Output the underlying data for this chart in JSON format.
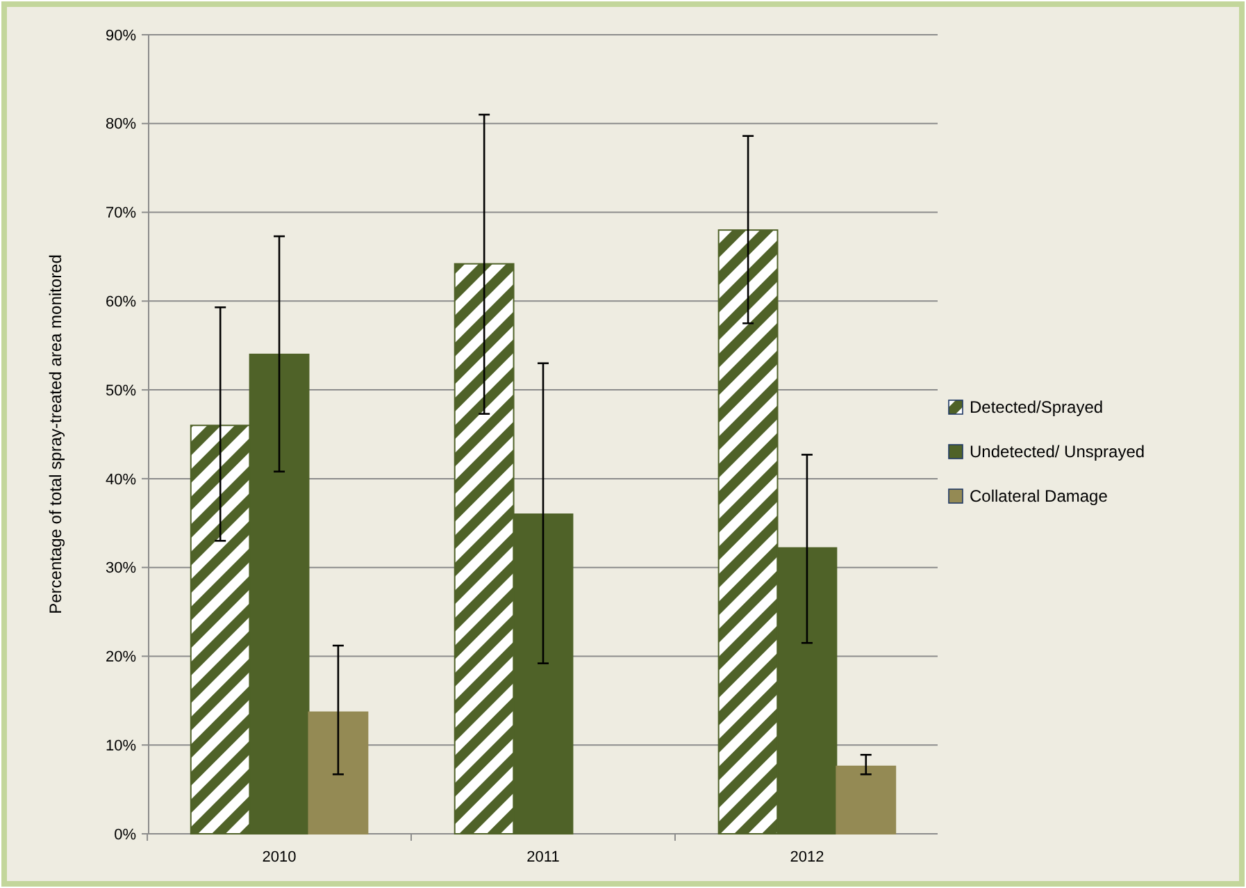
{
  "chart_data": {
    "type": "bar",
    "ylabel": "Percentage of total spray-treated area monitored",
    "categories": [
      "2010",
      "2011",
      "2012"
    ],
    "series": [
      {
        "name": "Detected/Sprayed",
        "color": "#4f6228",
        "values": [
          46,
          64.2,
          68
        ],
        "errors": [
          [
            33,
            59.3
          ],
          [
            47.3,
            81
          ],
          [
            57.5,
            78.6
          ]
        ]
      },
      {
        "name": "Undetected/ Unsprayed",
        "color": "#4f6228",
        "values": [
          54,
          36,
          32.2
        ],
        "errors": [
          [
            40.8,
            67.3
          ],
          [
            19.2,
            53
          ],
          [
            21.5,
            42.7
          ]
        ]
      },
      {
        "name": "Collateral Damage",
        "color": "#948a54",
        "values": [
          13.7,
          null,
          7.6
        ],
        "errors": [
          [
            6.7,
            21.2
          ],
          null,
          [
            6.7,
            8.9
          ]
        ]
      }
    ],
    "ylim": [
      0,
      90
    ],
    "yticks": [
      {
        "value": 0,
        "label": "0%"
      },
      {
        "value": 10,
        "label": "10%"
      },
      {
        "value": 20,
        "label": "20%"
      },
      {
        "value": 30,
        "label": "30%"
      },
      {
        "value": 40,
        "label": "40%"
      },
      {
        "value": 50,
        "label": "50%"
      },
      {
        "value": 60,
        "label": "60%"
      },
      {
        "value": 70,
        "label": "70%"
      },
      {
        "value": 80,
        "label": "80%"
      },
      {
        "value": 90,
        "label": "90%"
      }
    ],
    "grid": "y",
    "legend": "right"
  }
}
